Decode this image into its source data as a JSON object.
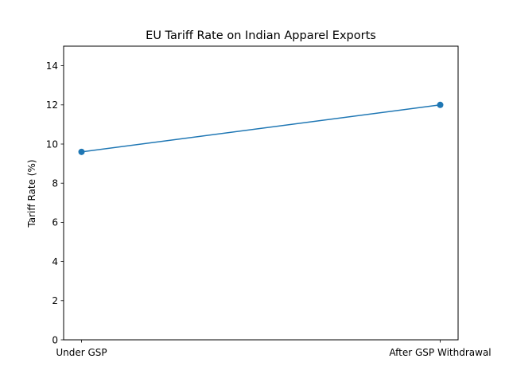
{
  "chart_data": {
    "type": "line",
    "title": "EU Tariff Rate on Indian Apparel Exports",
    "xlabel": "",
    "ylabel": "Tariff Rate (%)",
    "categories": [
      "Under GSP",
      "After GSP Withdrawal"
    ],
    "series": [
      {
        "name": "Tariff Rate",
        "values": [
          9.6,
          12.0
        ],
        "color": "#1f77b4",
        "marker": "circle"
      }
    ],
    "ylim": [
      0,
      15
    ],
    "yticks": [
      0,
      2,
      4,
      6,
      8,
      10,
      12,
      14
    ],
    "grid": false,
    "legend": "none"
  }
}
